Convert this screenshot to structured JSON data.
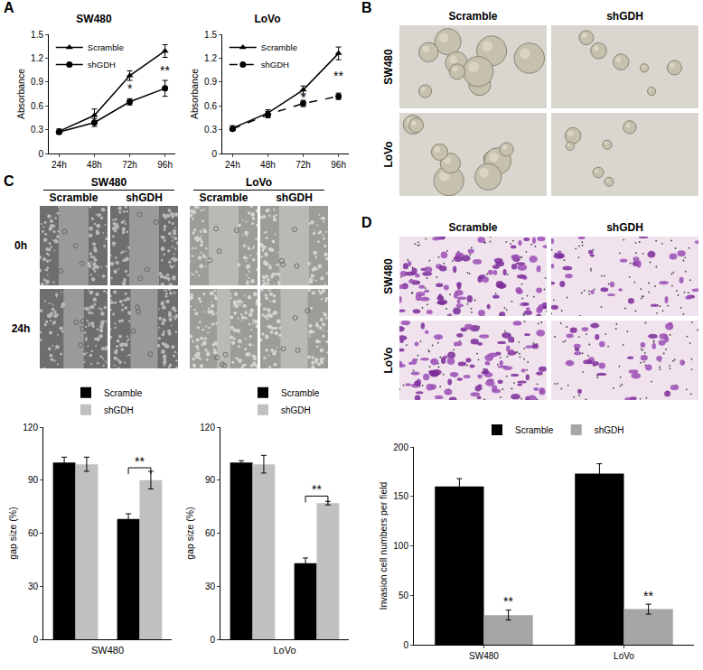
{
  "panel_labels": [
    "A",
    "B",
    "C",
    "D"
  ],
  "chart_data": [
    {
      "type": "line",
      "title": "SW480",
      "y_label": "Absorbance",
      "categories": [
        "24h",
        "48h",
        "72h",
        "96h"
      ],
      "series": [
        {
          "name": "Scramble",
          "color": "#000000",
          "marker": "triangle-up",
          "line_style": "solid",
          "values": [
            0.28,
            0.48,
            0.98,
            1.29
          ],
          "errors": [
            0.03,
            0.08,
            0.06,
            0.08
          ]
        },
        {
          "name": "shGDH",
          "color": "#000000",
          "marker": "circle",
          "line_style": "solid",
          "values": [
            0.27,
            0.39,
            0.65,
            0.82
          ],
          "errors": [
            0.02,
            0.05,
            0.04,
            0.1
          ]
        }
      ],
      "ylim": [
        0,
        1.5
      ],
      "yticks": [
        0,
        0.3,
        0.6,
        0.9,
        1.2,
        1.5
      ],
      "grid": false,
      "legend": "upper left",
      "annotations": [
        {
          "x": 2,
          "y": 0.82,
          "text": "*"
        },
        {
          "x": 3,
          "y": 1.05,
          "text": "**"
        }
      ]
    },
    {
      "type": "line",
      "title": "LoVo",
      "y_label": "Absorbance",
      "categories": [
        "24h",
        "48h",
        "72h",
        "96h"
      ],
      "series": [
        {
          "name": "Scramble",
          "color": "#000000",
          "marker": "triangle-up",
          "line_style": "solid",
          "values": [
            0.32,
            0.51,
            0.8,
            1.26
          ],
          "errors": [
            0.03,
            0.04,
            0.05,
            0.08
          ]
        },
        {
          "name": "shGDH",
          "color": "#000000",
          "marker": "circle",
          "line_style": "dash",
          "values": [
            0.31,
            0.49,
            0.63,
            0.72
          ],
          "errors": [
            0.02,
            0.04,
            0.04,
            0.04
          ]
        }
      ],
      "ylim": [
        0,
        1.5
      ],
      "yticks": [
        0,
        0.3,
        0.6,
        0.9,
        1.2,
        1.5
      ],
      "grid": false,
      "legend": "upper left",
      "annotations": [
        {
          "x": 2,
          "y": 0.71,
          "text": "*"
        },
        {
          "x": 3,
          "y": 0.98,
          "text": "**"
        }
      ]
    },
    {
      "type": "bar",
      "x_label": "SW480",
      "y_label": "gap size (%)",
      "categories": [
        null,
        null
      ],
      "series": [
        {
          "name": "Scramble",
          "color": "#000000",
          "values": [
            100,
            68
          ],
          "errors": [
            3,
            3
          ]
        },
        {
          "name": "shGDH",
          "color": "#c0c0c0",
          "values": [
            99,
            90
          ],
          "errors": [
            4,
            5
          ]
        }
      ],
      "ylim": [
        0,
        120
      ],
      "yticks": [
        0,
        30,
        60,
        90,
        120
      ],
      "grid": false,
      "legend": "top",
      "annotations": [
        {
          "x": 1,
          "y": 97,
          "text": "**"
        }
      ]
    },
    {
      "type": "bar",
      "x_label": "LoVo",
      "y_label": "gap size (%)",
      "categories": [
        null,
        null
      ],
      "series": [
        {
          "name": "Scramble",
          "color": "#000000",
          "values": [
            100,
            43
          ],
          "errors": [
            1,
            3
          ]
        },
        {
          "name": "shGDH",
          "color": "#c0c0c0",
          "values": [
            99,
            77
          ],
          "errors": [
            5,
            1
          ]
        }
      ],
      "ylim": [
        0,
        120
      ],
      "yticks": [
        0,
        30,
        60,
        90,
        120
      ],
      "grid": false,
      "legend": "top",
      "annotations": [
        {
          "x": 1,
          "y": 81,
          "text": "**"
        }
      ]
    },
    {
      "type": "bar",
      "y_label": "Invasion cell numbers per field",
      "categories": [
        "SW480",
        "LoVo"
      ],
      "series": [
        {
          "name": "Scramble",
          "color": "#000000",
          "values": [
            160,
            173
          ],
          "errors": [
            8,
            10
          ]
        },
        {
          "name": "shGDH",
          "color": "#a6a6a6",
          "values": [
            30,
            36
          ],
          "errors": [
            5,
            5
          ]
        }
      ],
      "ylim": [
        0,
        200
      ],
      "yticks": [
        0,
        50,
        100,
        150,
        200
      ],
      "grid": false,
      "legend": "top",
      "annotations": [
        {
          "x": 0,
          "y": 37,
          "text": "**",
          "series": "shGDH"
        },
        {
          "x": 1,
          "y": 43,
          "text": "**",
          "series": "shGDH"
        }
      ]
    }
  ],
  "image_panels": [
    {
      "panel": "B",
      "columns": [
        "Scramble",
        "shGDH"
      ],
      "rows": [
        "SW480",
        "LoVo"
      ]
    },
    {
      "panel": "C",
      "groups": [
        "SW480",
        "LoVo"
      ],
      "columns": [
        "Scramble",
        "shGDH"
      ],
      "rows": [
        "0h",
        "24h"
      ]
    },
    {
      "panel": "D",
      "columns": [
        "Scramble",
        "shGDH"
      ],
      "rows": [
        "SW480",
        "LoVo"
      ]
    }
  ]
}
